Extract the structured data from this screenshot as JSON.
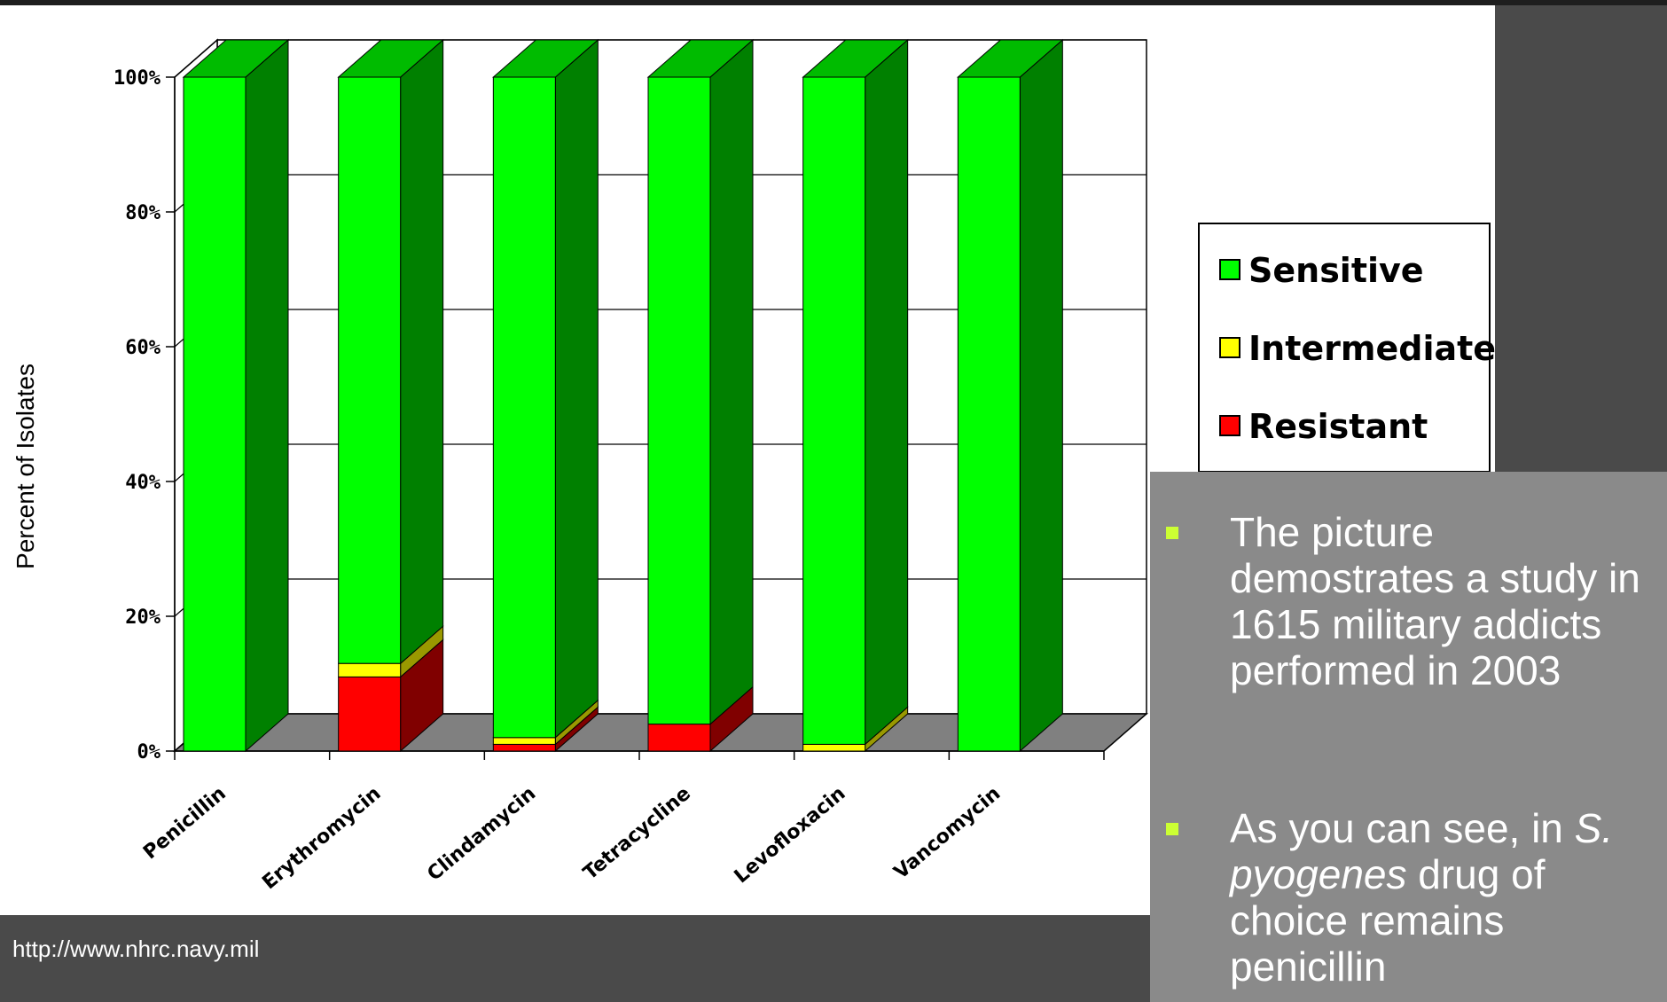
{
  "source_url": "http://www.nhrc.navy.mil",
  "bullets": [
    {
      "text": "The picture demostrates a study in 1615 military addicts performed in 2003"
    },
    {
      "text_before": "As you can see, in ",
      "text_italic": "S. pyogenes",
      "text_after": " drug of choice remains penicillin"
    }
  ],
  "colors": {
    "background": "#4a4a4a",
    "textbox": "#8a8a8a",
    "bullet": "#ccff33",
    "sensitive": "#00ff00",
    "sensitive_side": "#008000",
    "intermediate": "#ffff00",
    "resistant": "#ff0000",
    "resistant_side": "#800000",
    "floor": "#808080"
  },
  "chart_data": {
    "type": "bar",
    "stacked": true,
    "three_d": true,
    "title": "",
    "xlabel": "",
    "ylabel": "Percent of Isolates",
    "ylim": [
      0,
      100
    ],
    "yticks": [
      "0%",
      "20%",
      "40%",
      "60%",
      "80%",
      "100%"
    ],
    "grid": true,
    "legend_position": "right",
    "categories": [
      "Penicillin",
      "Erythromycin",
      "Clindamycin",
      "Tetracycline",
      "Levofloxacin",
      "Vancomycin"
    ],
    "series": [
      {
        "name": "Resistant",
        "color": "#ff0000",
        "values": [
          0,
          11,
          1,
          4,
          0,
          0
        ]
      },
      {
        "name": "Intermediate",
        "color": "#ffff00",
        "values": [
          0,
          2,
          1,
          0,
          1,
          0
        ]
      },
      {
        "name": "Sensitive",
        "color": "#00ff00",
        "values": [
          100,
          87,
          98,
          96,
          99,
          100
        ]
      }
    ],
    "legend_order": [
      "Sensitive",
      "Intermediate",
      "Resistant"
    ]
  }
}
